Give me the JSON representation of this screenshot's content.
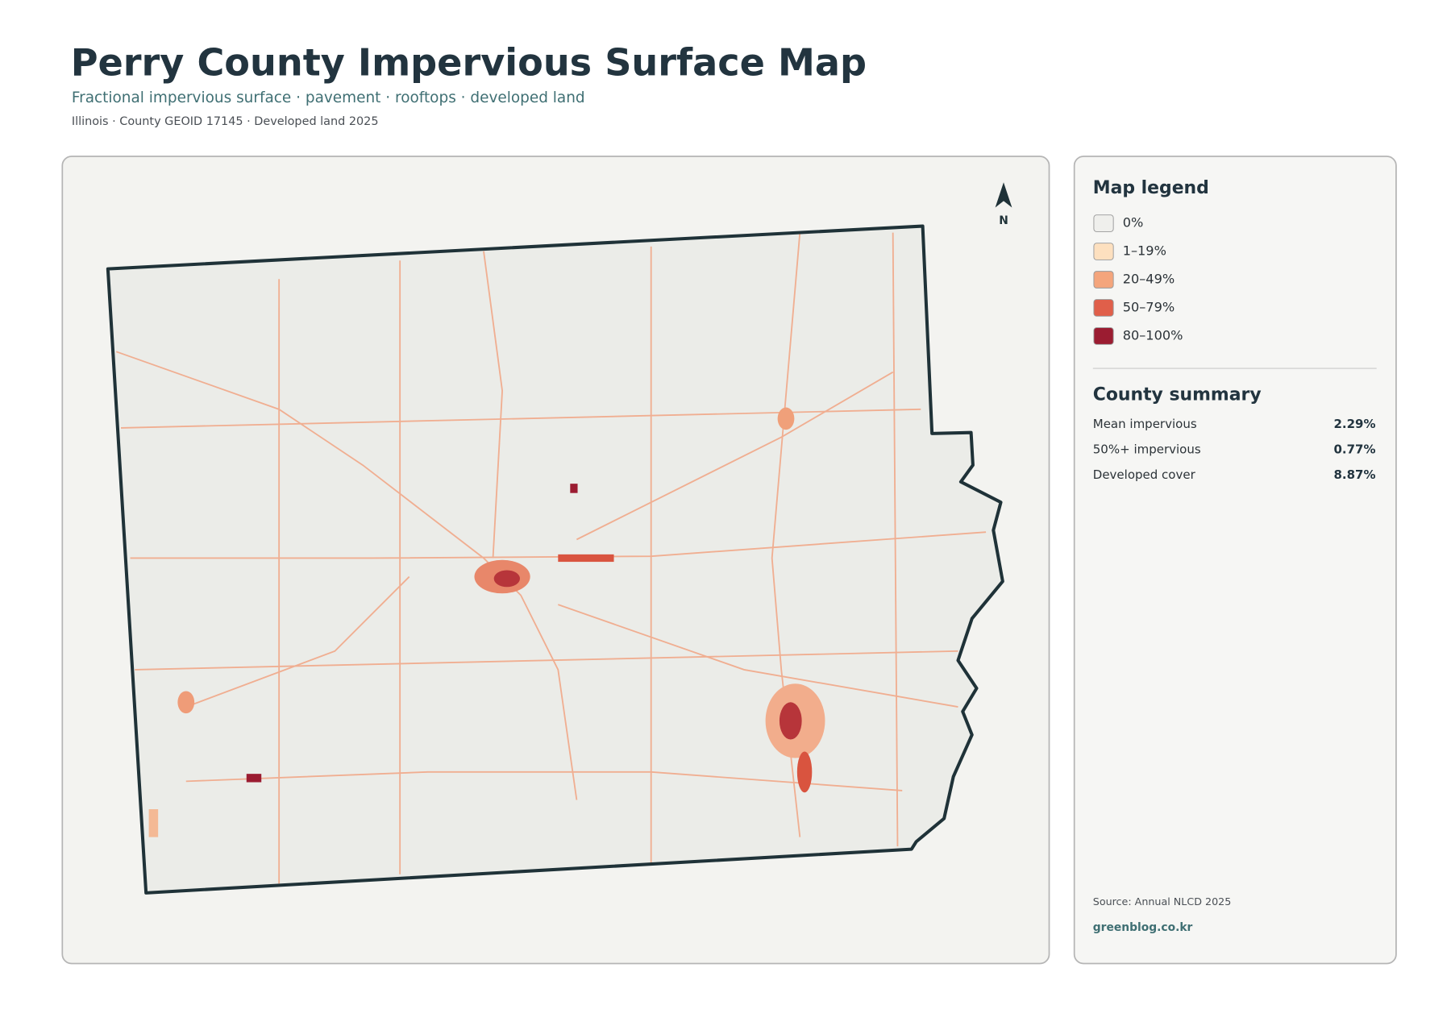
{
  "header": {
    "title": "Perry County Impervious Surface Map",
    "subtitle": "Fractional impervious surface · pavement · rooftops · developed land",
    "meta": "Illinois · County GEOID 17145 · Developed land 2025"
  },
  "map": {
    "north_label": "N"
  },
  "legend": {
    "title": "Map legend",
    "items": [
      {
        "label": "0%",
        "color": "#efefec"
      },
      {
        "label": "1–19%",
        "color": "#fde0bf"
      },
      {
        "label": "20–49%",
        "color": "#f4a57c"
      },
      {
        "label": "50–79%",
        "color": "#e05f4a"
      },
      {
        "label": "80–100%",
        "color": "#9b1c31"
      }
    ]
  },
  "summary": {
    "title": "County summary",
    "rows": [
      {
        "label": "Mean impervious",
        "value": "2.29%"
      },
      {
        "label": "50%+ impervious",
        "value": "0.77%"
      },
      {
        "label": "Developed cover",
        "value": "8.87%"
      }
    ]
  },
  "footer": {
    "source": "Source: Annual NLCD 2025",
    "credit": "greenblog.co.kr"
  }
}
